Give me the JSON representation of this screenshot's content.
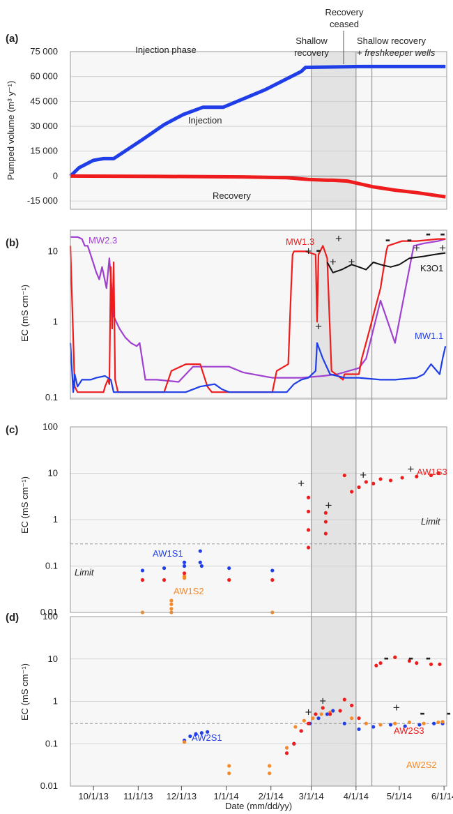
{
  "figure": {
    "xlabel": "Date (mm/dd/yy)",
    "x_ticks": [
      "10/1/13",
      "11/1/13",
      "12/1/13",
      "1/1/14",
      "2/1/14",
      "3/1/14",
      "4/1/14",
      "5/1/14",
      "6/1/14"
    ],
    "phases": {
      "injection": "Injection phase",
      "shallow_line1": "Shallow",
      "shallow_line2": "recovery",
      "ceased_line1": "Recovery",
      "ceased_line2": "ceased",
      "fk_line1": "Shallow recovery",
      "fk_line2_plain": "+ ",
      "fk_line2_italic": "freshkeeper wells"
    },
    "colors": {
      "blue": "#1f3ee8",
      "red": "#ee1c1c",
      "purple": "#a040d0",
      "black": "#111111",
      "orange": "#f58a2a",
      "panel_bg": "#f7f7f7",
      "shade": "#e3e3e3"
    }
  },
  "chart_data": [
    {
      "panel": "(a)",
      "type": "line",
      "ylabel": "Pumped volume (m³ y⁻¹)",
      "y_ticks": [
        "75 000",
        "60 000",
        "45 000",
        "30 000",
        "15 000",
        "0",
        "-15 000"
      ],
      "ylim": [
        -20000,
        75000
      ],
      "x_unit": "days since 9/15/13",
      "series": [
        {
          "name": "Injection",
          "color": "#1f3ee8",
          "x": [
            0,
            6,
            16,
            23,
            30,
            50,
            65,
            78,
            92,
            106,
            135,
            160,
            163,
            200,
            260
          ],
          "y": [
            0,
            5000,
            9500,
            10500,
            10500,
            22000,
            31000,
            37000,
            41500,
            41500,
            52000,
            63000,
            65500,
            66000,
            66000
          ]
        },
        {
          "name": "Recovery",
          "color": "#ee1c1c",
          "x": [
            0,
            60,
            120,
            150,
            165,
            178,
            182,
            192,
            210,
            225,
            240,
            260
          ],
          "y": [
            0,
            -200,
            -500,
            -1000,
            -2000,
            -2500,
            -2500,
            -3000,
            -6500,
            -8500,
            -10000,
            -12500
          ]
        }
      ]
    },
    {
      "panel": "(b)",
      "type": "line",
      "ylabel": "EC (mS cm⁻¹)",
      "yscale": "log",
      "ylim": [
        0.1,
        20
      ],
      "y_ticks": [
        "10",
        "1",
        "0.1"
      ],
      "series": [
        {
          "name": "MW2.3",
          "color": "#a040d0",
          "x": [
            0,
            5,
            8,
            10,
            12,
            14,
            18,
            20,
            22,
            25,
            27,
            30,
            34,
            38,
            42,
            46,
            48,
            52,
            60,
            75,
            85,
            110,
            120,
            140,
            160,
            175,
            185,
            200,
            205,
            215,
            225,
            238,
            245,
            255,
            260
          ],
          "y": [
            16,
            16,
            15,
            12,
            12,
            9,
            5,
            4,
            6,
            3,
            8,
            1.2,
            0.8,
            0.6,
            0.5,
            0.45,
            0.5,
            0.15,
            0.15,
            0.14,
            0.23,
            0.23,
            0.19,
            0.16,
            0.16,
            0.17,
            0.18,
            0.22,
            0.3,
            2,
            0.5,
            12,
            13,
            14,
            15
          ]
        },
        {
          "name": "MW1.3",
          "color": "#ee1c1c",
          "x": [
            0,
            3,
            5,
            22,
            23,
            24,
            26,
            27,
            28,
            29,
            30,
            31,
            33,
            40,
            65,
            70,
            80,
            90,
            95,
            98,
            120,
            140,
            143,
            151,
            153,
            154,
            155,
            163,
            170,
            171,
            172,
            175,
            178,
            181,
            189,
            190,
            200,
            202,
            206,
            215,
            219,
            220,
            230,
            240,
            255,
            260
          ],
          "y": [
            12,
            0.12,
            0.1,
            0.1,
            0.1,
            0.12,
            0.15,
            0.13,
            6,
            0.8,
            7,
            0.15,
            0.1,
            0.1,
            0.1,
            0.2,
            0.25,
            0.25,
            0.12,
            0.1,
            0.1,
            0.1,
            0.2,
            0.25,
            3,
            9,
            10,
            10,
            9,
            1,
            9,
            12,
            8,
            0.2,
            0.15,
            0.18,
            0.18,
            0.3,
            0.6,
            3,
            10,
            12,
            14,
            14,
            15,
            15
          ]
        },
        {
          "name": "MW1.1",
          "color": "#1f3ee8",
          "x": [
            0,
            2,
            3,
            5,
            8,
            14,
            18,
            24,
            28,
            30,
            32,
            40,
            80,
            90,
            100,
            105,
            110,
            150,
            155,
            160,
            165,
            170,
            171,
            175,
            180,
            190,
            200,
            215,
            225,
            240,
            245,
            250,
            256,
            258,
            260
          ],
          "y": [
            0.5,
            0.1,
            0.18,
            0.12,
            0.15,
            0.15,
            0.16,
            0.17,
            0.15,
            0.1,
            0.1,
            0.1,
            0.1,
            0.12,
            0.13,
            0.11,
            0.1,
            0.1,
            0.13,
            0.15,
            0.16,
            0.2,
            0.5,
            0.3,
            0.18,
            0.16,
            0.16,
            0.15,
            0.15,
            0.16,
            0.18,
            0.25,
            0.18,
            0.3,
            0.45
          ]
        },
        {
          "name": "K3O1",
          "color": "#111111",
          "x": [
            178,
            182,
            188,
            195,
            200,
            205,
            210,
            215,
            222,
            228,
            235,
            245,
            252,
            260
          ],
          "y": [
            7,
            5,
            5.5,
            6.5,
            6,
            5.5,
            7,
            6.5,
            6,
            6.5,
            8,
            8.5,
            9,
            9.5
          ]
        }
      ]
    },
    {
      "panel": "(c)",
      "type": "scatter",
      "ylabel": "EC (mS cm⁻¹)",
      "yscale": "log",
      "ylim": [
        0.01,
        100
      ],
      "y_ticks": [
        "100",
        "10",
        "1",
        "0.1",
        "0.01"
      ],
      "limit_label": "Limit",
      "limit_value": 0.3,
      "series": [
        {
          "name": "AW1S1",
          "color": "#1f3ee8",
          "x": [
            50,
            65,
            79,
            79,
            90,
            90,
            91,
            110,
            140
          ],
          "y": [
            0.08,
            0.09,
            0.12,
            0.1,
            0.21,
            0.12,
            0.1,
            0.09,
            0.08
          ]
        },
        {
          "name": "AW1S2",
          "color": "#f58a2a",
          "x": [
            50,
            70,
            70,
            70,
            70,
            79,
            79,
            140
          ],
          "y": [
            0.01,
            0.01,
            0.012,
            0.015,
            0.018,
            0.06,
            0.055,
            0.01
          ]
        },
        {
          "name": "AW1S3",
          "color": "#ee1c1c",
          "x": [
            50,
            65,
            79,
            110,
            140,
            165,
            165,
            165,
            165,
            177,
            177,
            177,
            190,
            195,
            200,
            205,
            210,
            215,
            222,
            230,
            240,
            250,
            255
          ],
          "y": [
            0.05,
            0.05,
            0.07,
            0.05,
            0.05,
            0.25,
            0.6,
            1.5,
            3,
            0.5,
            0.9,
            1.4,
            9,
            4,
            5,
            6.5,
            6,
            7.5,
            7,
            8,
            8.5,
            9,
            10
          ]
        }
      ]
    },
    {
      "panel": "(d)",
      "type": "scatter",
      "ylabel": "EC (mS cm⁻¹)",
      "yscale": "log",
      "ylim": [
        0.01,
        100
      ],
      "y_ticks": [
        "100",
        "10",
        "1",
        "0.1",
        "0.01"
      ],
      "limit_label": "Limit",
      "limit_value": 0.3,
      "series": [
        {
          "name": "AW2S1",
          "color": "#1f3ee8",
          "x": [
            79,
            83,
            87,
            91,
            95,
            155,
            160,
            166,
            172,
            178,
            182,
            190,
            200,
            210,
            222,
            232,
            242,
            252,
            258
          ],
          "y": [
            0.12,
            0.15,
            0.17,
            0.18,
            0.19,
            0.1,
            0.2,
            0.3,
            0.4,
            0.5,
            0.6,
            0.3,
            0.22,
            0.25,
            0.28,
            0.26,
            0.28,
            0.3,
            0.3
          ]
        },
        {
          "name": "AW2S2",
          "color": "#f58a2a",
          "x": [
            79,
            110,
            110,
            138,
            138,
            150,
            156,
            162,
            168,
            174,
            180,
            195,
            205,
            215,
            225,
            235,
            245,
            255,
            258
          ],
          "y": [
            0.11,
            0.02,
            0.03,
            0.02,
            0.03,
            0.08,
            0.25,
            0.35,
            0.4,
            0.5,
            0.55,
            0.4,
            0.3,
            0.28,
            0.3,
            0.32,
            0.3,
            0.32,
            0.33
          ]
        },
        {
          "name": "AW2S3",
          "color": "#ee1c1c",
          "x": [
            150,
            155,
            160,
            165,
            170,
            175,
            180,
            187,
            190,
            195,
            200,
            212,
            215,
            225,
            235,
            240,
            250,
            256
          ],
          "y": [
            0.06,
            0.1,
            0.2,
            0.3,
            0.5,
            0.7,
            0.5,
            0.6,
            1.1,
            0.8,
            0.4,
            7,
            8,
            11,
            9,
            8,
            7.5,
            7.5
          ]
        }
      ]
    }
  ],
  "panels": [
    {
      "letter": "(a)"
    },
    {
      "letter": "(b)"
    },
    {
      "letter": "(c)"
    },
    {
      "letter": "(d)"
    }
  ]
}
